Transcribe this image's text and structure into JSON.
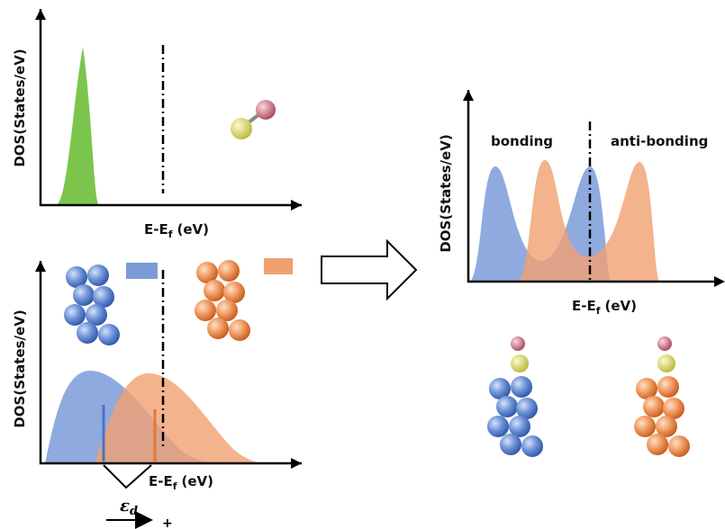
{
  "panels": [
    {
      "y_label": "DOS(States/eV)",
      "x_label": {
        "main": "E-E",
        "sub": "f",
        "unit": "(eV)"
      }
    },
    {
      "y_label": "DOS(States/eV)",
      "x_label": {
        "main": "E-E",
        "sub": "f",
        "unit": "(eV)"
      }
    },
    {
      "y_label": "DOS(States/eV)",
      "x_label": {
        "main": "E-E",
        "sub": "f",
        "unit": "(eV)"
      }
    }
  ],
  "labels": {
    "bonding": "bonding",
    "anti_bonding": "anti-bonding"
  },
  "d_band": {
    "symbol": "ε",
    "sub": "d",
    "sign": "+"
  }
}
